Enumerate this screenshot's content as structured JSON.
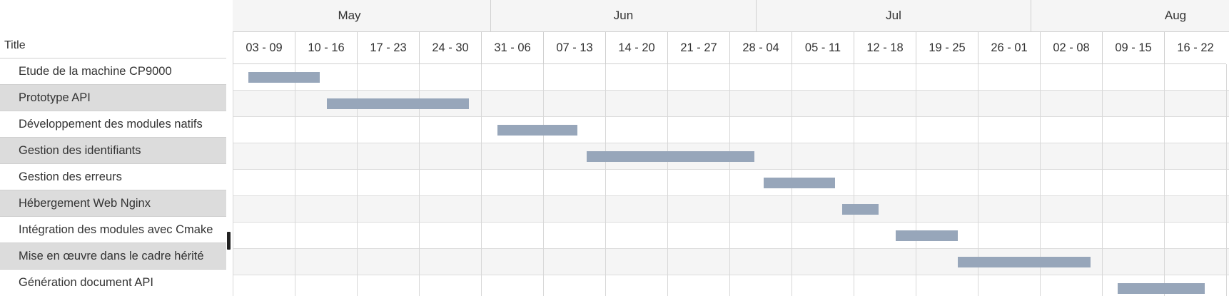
{
  "task_list": {
    "header": "Title",
    "tasks": [
      {
        "title": "Etude de la machine CP9000",
        "start_week": 0.25,
        "end_week": 1.4
      },
      {
        "title": "Prototype API",
        "start_week": 1.52,
        "end_week": 3.8
      },
      {
        "title": "Développement des modules natifs",
        "start_week": 4.27,
        "end_week": 5.55
      },
      {
        "title": "Gestion des identifiants",
        "start_week": 5.7,
        "end_week": 8.4
      },
      {
        "title": "Gestion des erreurs",
        "start_week": 8.55,
        "end_week": 9.7
      },
      {
        "title": "Hébergement Web Nginx",
        "start_week": 9.82,
        "end_week": 10.4
      },
      {
        "title": "Intégration des modules avec Cmake",
        "start_week": 10.68,
        "end_week": 11.68
      },
      {
        "title": "Mise en œuvre dans le cadre hérité",
        "start_week": 11.68,
        "end_week": 13.82
      },
      {
        "title": "Génération document API",
        "start_week": 14.25,
        "end_week": 15.65
      }
    ]
  },
  "timeline": {
    "months": [
      {
        "label": "May",
        "start_week": -0.4,
        "end_week": 4.15
      },
      {
        "label": "Jun",
        "start_week": 4.15,
        "end_week": 8.42
      },
      {
        "label": "Jul",
        "start_week": 8.42,
        "end_week": 12.85
      },
      {
        "label": "Aug",
        "start_week": 12.85,
        "end_week": 17.5
      }
    ],
    "weeks": [
      "03 - 09",
      "10 - 16",
      "17 - 23",
      "24 - 30",
      "31 - 06",
      "07 - 13",
      "14 - 20",
      "21 - 27",
      "28 - 04",
      "05 - 11",
      "12 - 18",
      "19 - 25",
      "26 - 01",
      "02 - 08",
      "09 - 15",
      "16 - 22"
    ]
  },
  "colors": {
    "bar": "#97a6ba",
    "alt_row_left": "#dcdcdc",
    "alt_row_grid": "#f5f5f5",
    "header_bg": "#f5f5f5",
    "grid_line": "#d0d0d0"
  }
}
